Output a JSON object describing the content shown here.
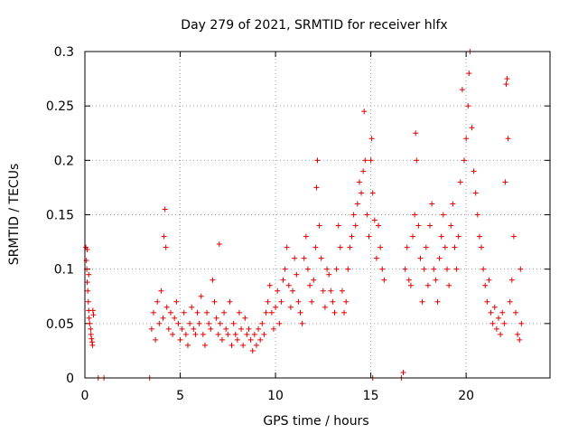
{
  "chart_data": {
    "type": "scatter",
    "title": "Day 279 of 2021, SRMTID for receiver hlfx",
    "xlabel": "GPS time / hours",
    "ylabel": "SRMTID / TECUs",
    "xlim": [
      0,
      24.4
    ],
    "ylim": [
      0,
      0.3
    ],
    "x_ticks": [
      0,
      5,
      10,
      15,
      20
    ],
    "y_ticks": [
      0,
      0.05,
      0.1,
      0.15,
      0.2,
      0.25,
      0.3
    ],
    "x_tick_labels": [
      "0",
      "5",
      "10",
      "15",
      "20"
    ],
    "y_tick_labels": [
      "0",
      "0.05",
      "0.1",
      "0.15",
      "0.2",
      "0.25",
      "0.3"
    ],
    "grid": true,
    "marker": "+",
    "color": "#e00000",
    "series": [
      {
        "points": [
          [
            0.05,
            0.12
          ],
          [
            0.08,
            0.108
          ],
          [
            0.1,
            0.1
          ],
          [
            0.12,
            0.088
          ],
          [
            0.15,
            0.08
          ],
          [
            0.18,
            0.07
          ],
          [
            0.2,
            0.062
          ],
          [
            0.22,
            0.055
          ],
          [
            0.25,
            0.05
          ],
          [
            0.3,
            0.045
          ],
          [
            0.32,
            0.04
          ],
          [
            0.35,
            0.036
          ],
          [
            0.38,
            0.033
          ],
          [
            0.4,
            0.03
          ],
          [
            0.42,
            0.062
          ],
          [
            0.45,
            0.058
          ],
          [
            0.12,
            0.118
          ],
          [
            0.2,
            0.095
          ],
          [
            0.7,
            0.0
          ],
          [
            1.0,
            0.0
          ],
          [
            3.4,
            0.0
          ],
          [
            3.5,
            0.045
          ],
          [
            3.6,
            0.06
          ],
          [
            3.7,
            0.035
          ],
          [
            3.8,
            0.07
          ],
          [
            3.9,
            0.05
          ],
          [
            4.0,
            0.08
          ],
          [
            4.1,
            0.055
          ],
          [
            4.15,
            0.13
          ],
          [
            4.2,
            0.155
          ],
          [
            4.25,
            0.12
          ],
          [
            4.3,
            0.065
          ],
          [
            4.4,
            0.045
          ],
          [
            4.5,
            0.06
          ],
          [
            4.6,
            0.04
          ],
          [
            4.7,
            0.055
          ],
          [
            4.8,
            0.07
          ],
          [
            4.9,
            0.05
          ],
          [
            5.0,
            0.035
          ],
          [
            5.1,
            0.045
          ],
          [
            5.2,
            0.06
          ],
          [
            5.3,
            0.04
          ],
          [
            5.4,
            0.03
          ],
          [
            5.5,
            0.05
          ],
          [
            5.6,
            0.065
          ],
          [
            5.7,
            0.045
          ],
          [
            5.8,
            0.04
          ],
          [
            5.9,
            0.06
          ],
          [
            6.0,
            0.05
          ],
          [
            6.1,
            0.075
          ],
          [
            6.2,
            0.04
          ],
          [
            6.3,
            0.03
          ],
          [
            6.4,
            0.06
          ],
          [
            6.5,
            0.05
          ],
          [
            6.6,
            0.045
          ],
          [
            6.7,
            0.09
          ],
          [
            6.8,
            0.07
          ],
          [
            6.9,
            0.055
          ],
          [
            7.0,
            0.04
          ],
          [
            7.05,
            0.123
          ],
          [
            7.1,
            0.05
          ],
          [
            7.2,
            0.035
          ],
          [
            7.3,
            0.06
          ],
          [
            7.4,
            0.045
          ],
          [
            7.5,
            0.04
          ],
          [
            7.6,
            0.07
          ],
          [
            7.7,
            0.03
          ],
          [
            7.8,
            0.05
          ],
          [
            7.9,
            0.04
          ],
          [
            8.0,
            0.035
          ],
          [
            8.1,
            0.06
          ],
          [
            8.2,
            0.045
          ],
          [
            8.3,
            0.03
          ],
          [
            8.4,
            0.055
          ],
          [
            8.5,
            0.04
          ],
          [
            8.6,
            0.045
          ],
          [
            8.7,
            0.035
          ],
          [
            8.8,
            0.025
          ],
          [
            8.9,
            0.04
          ],
          [
            9.0,
            0.03
          ],
          [
            9.1,
            0.045
          ],
          [
            9.2,
            0.035
          ],
          [
            9.3,
            0.05
          ],
          [
            9.4,
            0.04
          ],
          [
            9.5,
            0.06
          ],
          [
            9.6,
            0.07
          ],
          [
            9.7,
            0.085
          ],
          [
            9.8,
            0.06
          ],
          [
            9.9,
            0.045
          ],
          [
            10.0,
            0.065
          ],
          [
            10.1,
            0.08
          ],
          [
            10.2,
            0.05
          ],
          [
            10.3,
            0.07
          ],
          [
            10.4,
            0.09
          ],
          [
            10.5,
            0.1
          ],
          [
            10.6,
            0.12
          ],
          [
            10.7,
            0.085
          ],
          [
            10.8,
            0.065
          ],
          [
            10.9,
            0.08
          ],
          [
            11.0,
            0.11
          ],
          [
            11.1,
            0.095
          ],
          [
            11.2,
            0.07
          ],
          [
            11.3,
            0.06
          ],
          [
            11.4,
            0.05
          ],
          [
            11.5,
            0.11
          ],
          [
            11.6,
            0.13
          ],
          [
            11.7,
            0.1
          ],
          [
            11.8,
            0.085
          ],
          [
            11.9,
            0.07
          ],
          [
            12.0,
            0.09
          ],
          [
            12.1,
            0.12
          ],
          [
            12.15,
            0.175
          ],
          [
            12.2,
            0.2
          ],
          [
            12.3,
            0.14
          ],
          [
            12.4,
            0.11
          ],
          [
            12.5,
            0.08
          ],
          [
            12.6,
            0.065
          ],
          [
            12.7,
            0.1
          ],
          [
            12.8,
            0.095
          ],
          [
            12.9,
            0.08
          ],
          [
            13.0,
            0.07
          ],
          [
            13.1,
            0.06
          ],
          [
            13.2,
            0.1
          ],
          [
            13.3,
            0.14
          ],
          [
            13.4,
            0.12
          ],
          [
            13.5,
            0.08
          ],
          [
            13.6,
            0.06
          ],
          [
            13.7,
            0.07
          ],
          [
            13.8,
            0.1
          ],
          [
            13.9,
            0.12
          ],
          [
            14.0,
            0.13
          ],
          [
            14.1,
            0.15
          ],
          [
            14.2,
            0.14
          ],
          [
            14.3,
            0.16
          ],
          [
            14.4,
            0.18
          ],
          [
            14.5,
            0.17
          ],
          [
            14.6,
            0.19
          ],
          [
            14.65,
            0.245
          ],
          [
            14.7,
            0.2
          ],
          [
            14.8,
            0.15
          ],
          [
            14.9,
            0.13
          ],
          [
            15.0,
            0.2
          ],
          [
            15.05,
            0.22
          ],
          [
            15.1,
            0.17
          ],
          [
            15.2,
            0.145
          ],
          [
            15.3,
            0.11
          ],
          [
            15.4,
            0.14
          ],
          [
            15.5,
            0.12
          ],
          [
            15.6,
            0.1
          ],
          [
            15.7,
            0.09
          ],
          [
            15.1,
            0.0
          ],
          [
            16.6,
            0.0
          ],
          [
            16.7,
            0.005
          ],
          [
            16.8,
            0.1
          ],
          [
            16.9,
            0.12
          ],
          [
            17.0,
            0.09
          ],
          [
            17.1,
            0.085
          ],
          [
            17.2,
            0.13
          ],
          [
            17.3,
            0.15
          ],
          [
            17.35,
            0.225
          ],
          [
            17.4,
            0.2
          ],
          [
            17.5,
            0.14
          ],
          [
            17.6,
            0.11
          ],
          [
            17.7,
            0.07
          ],
          [
            17.8,
            0.1
          ],
          [
            17.9,
            0.12
          ],
          [
            18.0,
            0.085
          ],
          [
            18.1,
            0.14
          ],
          [
            18.2,
            0.16
          ],
          [
            18.3,
            0.1
          ],
          [
            18.4,
            0.09
          ],
          [
            18.5,
            0.07
          ],
          [
            18.6,
            0.11
          ],
          [
            18.7,
            0.13
          ],
          [
            18.8,
            0.15
          ],
          [
            18.9,
            0.12
          ],
          [
            19.0,
            0.1
          ],
          [
            19.1,
            0.085
          ],
          [
            19.2,
            0.14
          ],
          [
            19.3,
            0.16
          ],
          [
            19.4,
            0.12
          ],
          [
            19.5,
            0.1
          ],
          [
            19.6,
            0.13
          ],
          [
            19.7,
            0.18
          ],
          [
            19.8,
            0.265
          ],
          [
            19.9,
            0.2
          ],
          [
            20.0,
            0.22
          ],
          [
            20.1,
            0.25
          ],
          [
            20.15,
            0.28
          ],
          [
            20.2,
            0.3
          ],
          [
            20.3,
            0.23
          ],
          [
            20.4,
            0.19
          ],
          [
            20.5,
            0.17
          ],
          [
            20.6,
            0.15
          ],
          [
            20.7,
            0.13
          ],
          [
            20.8,
            0.12
          ],
          [
            20.9,
            0.1
          ],
          [
            21.0,
            0.085
          ],
          [
            21.1,
            0.07
          ],
          [
            21.2,
            0.09
          ],
          [
            21.3,
            0.06
          ],
          [
            21.4,
            0.05
          ],
          [
            21.5,
            0.065
          ],
          [
            21.6,
            0.045
          ],
          [
            21.7,
            0.055
          ],
          [
            21.8,
            0.04
          ],
          [
            21.9,
            0.06
          ],
          [
            22.0,
            0.05
          ],
          [
            22.05,
            0.18
          ],
          [
            22.1,
            0.27
          ],
          [
            22.15,
            0.275
          ],
          [
            22.2,
            0.22
          ],
          [
            22.3,
            0.07
          ],
          [
            22.4,
            0.09
          ],
          [
            22.5,
            0.13
          ],
          [
            22.6,
            0.06
          ],
          [
            22.7,
            0.04
          ],
          [
            22.8,
            0.035
          ],
          [
            22.85,
            0.1
          ],
          [
            22.9,
            0.05
          ]
        ]
      }
    ]
  }
}
